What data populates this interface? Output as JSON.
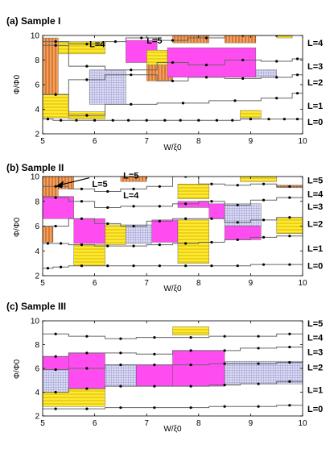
{
  "chart_data": [
    {
      "type": "step-band",
      "title": "(a) Sample I",
      "xlabel": "W/ξ0",
      "ylabel": "Φ/Φ0",
      "xlim": [
        5,
        10
      ],
      "ylim": [
        2,
        10
      ],
      "xticks": [
        "5",
        "6",
        "7",
        "8",
        "9",
        "10"
      ],
      "yticks": [
        "2",
        "4",
        "6",
        "8",
        "10"
      ],
      "level_labels": [
        {
          "text": "L=4",
          "y": 9.4
        },
        {
          "text": "L=3",
          "y": 7.5
        },
        {
          "text": "L=2",
          "y": 6.2
        },
        {
          "text": "L=1",
          "y": 4.3
        },
        {
          "text": "L=0",
          "y": 3.0
        }
      ],
      "inner_labels": [
        {
          "text": "L=4",
          "x": 5.9,
          "y": 9.3
        },
        {
          "text": "L=5",
          "x": 7.0,
          "y": 9.6
        }
      ],
      "lines": [
        {
          "x": [
            5,
            5.2,
            5.5,
            5.8,
            6.2,
            6.5,
            6.8,
            7.2,
            7.5,
            7.8,
            8.2,
            8.5,
            8.8,
            9.2,
            9.5,
            9.8,
            10
          ],
          "y": [
            3.2,
            3.1,
            3.1,
            3.1,
            3.1,
            3.1,
            3.1,
            3.1,
            3.1,
            3.1,
            3.1,
            3.1,
            3.2,
            3.2,
            3.2,
            3.2,
            3.2
          ]
        },
        {
          "x": [
            5,
            5.5,
            6.2,
            7.2,
            8.2,
            9.2,
            9.8,
            10
          ],
          "y": [
            5.2,
            3.5,
            4.4,
            4.5,
            4.7,
            4.9,
            5.3,
            5.3
          ]
        },
        {
          "x": [
            5,
            5.5,
            6.2,
            7.2,
            7.8,
            8.5,
            9.2,
            9.8,
            10
          ],
          "y": [
            5.2,
            6.4,
            6.8,
            6.3,
            6.6,
            6.5,
            6.6,
            6.8,
            6.8
          ]
        },
        {
          "x": [
            5,
            5.5,
            6.2,
            7.2,
            7.8,
            8.5,
            9.2,
            9.8,
            10
          ],
          "y": [
            9.2,
            7.5,
            7.2,
            7.8,
            7.6,
            8.0,
            7.9,
            8.1,
            8.1
          ]
        },
        {
          "x": [
            5,
            5.5,
            6.2,
            6.6,
            7.2,
            7.8,
            8.5,
            9.2,
            9.8
          ],
          "y": [
            9.5,
            9.3,
            9.5,
            9.8,
            9.6,
            9.8,
            10.0,
            10.0,
            10.0
          ]
        }
      ],
      "bands": [
        {
          "fill": "orange",
          "x0": 5.0,
          "x1": 5.3,
          "y0": 5.2,
          "y1": 9.8
        },
        {
          "fill": "yellow",
          "x0": 5.0,
          "x1": 5.5,
          "y0": 3.3,
          "y1": 5.2
        },
        {
          "fill": "yellow",
          "x0": 5.5,
          "x1": 6.2,
          "y0": 3.2,
          "y1": 3.8
        },
        {
          "fill": "yellow",
          "x0": 5.3,
          "x1": 6.2,
          "y0": 8.5,
          "y1": 9.5
        },
        {
          "fill": "blue",
          "x0": 5.9,
          "x1": 6.6,
          "y0": 4.4,
          "y1": 7.2
        },
        {
          "fill": "magenta",
          "x0": 6.6,
          "x1": 7.2,
          "y0": 7.8,
          "y1": 9.6
        },
        {
          "fill": "orange",
          "x0": 7.0,
          "x1": 7.5,
          "y0": 6.3,
          "y1": 8.6
        },
        {
          "fill": "yellow",
          "x0": 7.0,
          "x1": 7.4,
          "y0": 7.6,
          "y1": 8.8
        },
        {
          "fill": "magenta",
          "x0": 7.4,
          "x1": 9.1,
          "y0": 6.6,
          "y1": 9.0
        },
        {
          "fill": "orange",
          "x0": 7.5,
          "x1": 8.2,
          "y0": 9.4,
          "y1": 10.0
        },
        {
          "fill": "orange",
          "x0": 8.5,
          "x1": 9.1,
          "y0": 9.4,
          "y1": 10.0
        },
        {
          "fill": "blue",
          "x0": 9.1,
          "x1": 9.5,
          "y0": 6.6,
          "y1": 7.2
        },
        {
          "fill": "yellow",
          "x0": 8.8,
          "x1": 9.2,
          "y0": 3.3,
          "y1": 3.9
        },
        {
          "fill": "yellow",
          "x0": 9.5,
          "x1": 9.8,
          "y0": 9.8,
          "y1": 10.0
        }
      ]
    },
    {
      "type": "step-band",
      "title": "(b) Sample II",
      "xlabel": "W/ξ0",
      "ylabel": "Φ/Φ0",
      "xlim": [
        5,
        10
      ],
      "ylim": [
        2,
        10
      ],
      "xticks": [
        "5",
        "6",
        "7",
        "8",
        "9",
        "10"
      ],
      "yticks": [
        "2",
        "4",
        "6",
        "8",
        "10"
      ],
      "level_labels": [
        {
          "text": "L=5",
          "y": 9.7
        },
        {
          "text": "L=4",
          "y": 8.6
        },
        {
          "text": "L=3",
          "y": 7.6
        },
        {
          "text": "L=2",
          "y": 6.2
        },
        {
          "text": "L=1",
          "y": 4.2
        },
        {
          "text": "L=0",
          "y": 2.8
        }
      ],
      "inner_labels": [
        {
          "text": "L=5",
          "x": 5.95,
          "y": 9.4
        },
        {
          "text": "L=5",
          "x": 6.55,
          "y": 10.1
        },
        {
          "text": "L=4",
          "x": 6.55,
          "y": 8.5
        }
      ],
      "lines": [
        {
          "x": [
            5,
            5.2,
            5.5,
            6.0,
            6.5,
            7.0,
            7.5,
            8.0,
            8.5,
            9.0,
            9.5,
            10
          ],
          "y": [
            2.6,
            2.7,
            2.8,
            2.8,
            2.8,
            2.8,
            2.8,
            2.8,
            2.8,
            2.9,
            2.9,
            3.0
          ]
        },
        {
          "x": [
            5,
            5.2,
            5.5,
            6.0,
            6.5,
            7.0,
            7.5,
            8.0,
            8.5,
            9.0,
            9.5,
            10
          ],
          "y": [
            4.6,
            4.6,
            4.5,
            4.4,
            4.4,
            4.5,
            4.6,
            4.7,
            4.9,
            5.1,
            5.2,
            5.4
          ]
        },
        {
          "x": [
            5,
            5.5,
            6.0,
            6.5,
            7.0,
            7.5,
            8.0,
            8.5,
            9.0,
            9.5,
            10
          ],
          "y": [
            6.0,
            6.6,
            6.2,
            6.0,
            6.4,
            6.6,
            6.6,
            6.3,
            6.5,
            6.7,
            7.0
          ]
        },
        {
          "x": [
            5,
            5.5,
            6.0,
            6.5,
            7.0,
            7.5,
            8.0,
            8.5,
            9.0,
            9.5,
            10
          ],
          "y": [
            8.3,
            8.0,
            7.5,
            7.6,
            7.6,
            7.8,
            8.0,
            7.7,
            8.1,
            8.3,
            8.4
          ]
        },
        {
          "x": [
            5,
            5.5,
            6.0,
            6.5,
            7.0,
            7.5,
            8.0,
            8.5,
            9.0,
            9.5,
            10
          ],
          "y": [
            9.2,
            9.0,
            8.8,
            9.0,
            9.2,
            10.0,
            9.4,
            9.3,
            9.4,
            9.2,
            8.9
          ]
        }
      ],
      "bands": [
        {
          "fill": "orange",
          "x0": 5.0,
          "x1": 5.3,
          "y0": 8.4,
          "y1": 10.0
        },
        {
          "fill": "orange",
          "x0": 5.3,
          "x1": 5.6,
          "y0": 9.0,
          "y1": 10.0
        },
        {
          "fill": "orange",
          "x0": 5.0,
          "x1": 5.2,
          "y0": 4.7,
          "y1": 6.0
        },
        {
          "fill": "magenta",
          "x0": 5.0,
          "x1": 5.6,
          "y0": 6.6,
          "y1": 8.4
        },
        {
          "fill": "magenta",
          "x0": 5.6,
          "x1": 6.2,
          "y0": 4.6,
          "y1": 6.6
        },
        {
          "fill": "yellow",
          "x0": 5.6,
          "x1": 6.2,
          "y0": 2.8,
          "y1": 4.5
        },
        {
          "fill": "yellow",
          "x0": 6.2,
          "x1": 6.6,
          "y0": 4.5,
          "y1": 6.1
        },
        {
          "fill": "blue",
          "x0": 6.6,
          "x1": 7.1,
          "y0": 4.6,
          "y1": 6.1
        },
        {
          "fill": "magenta",
          "x0": 7.1,
          "x1": 7.6,
          "y0": 4.7,
          "y1": 6.5
        },
        {
          "fill": "orange",
          "x0": 6.5,
          "x1": 7.0,
          "y0": 9.6,
          "y1": 10.0
        },
        {
          "fill": "yellow",
          "x0": 7.6,
          "x1": 8.2,
          "y0": 8.2,
          "y1": 9.4
        },
        {
          "fill": "yellow",
          "x0": 7.6,
          "x1": 8.2,
          "y0": 3.0,
          "y1": 6.5
        },
        {
          "fill": "magenta",
          "x0": 7.6,
          "x1": 8.2,
          "y0": 7.5,
          "y1": 8.0
        },
        {
          "fill": "magenta",
          "x0": 8.2,
          "x1": 8.5,
          "y0": 6.6,
          "y1": 7.8
        },
        {
          "fill": "blue",
          "x0": 8.5,
          "x1": 9.2,
          "y0": 6.0,
          "y1": 7.8
        },
        {
          "fill": "magenta",
          "x0": 8.5,
          "x1": 9.2,
          "y0": 4.9,
          "y1": 6.0
        },
        {
          "fill": "yellow",
          "x0": 8.8,
          "x1": 9.5,
          "y0": 9.6,
          "y1": 10.0
        },
        {
          "fill": "orange",
          "x0": 9.5,
          "x1": 10.0,
          "y0": 9.1,
          "y1": 9.3
        },
        {
          "fill": "yellow",
          "x0": 9.5,
          "x1": 10.0,
          "y0": 5.4,
          "y1": 6.7
        }
      ]
    },
    {
      "type": "step-band",
      "title": "(c) Sample III",
      "xlabel": "W/ξ0",
      "ylabel": "Φ/Φ0",
      "xlim": [
        5,
        10
      ],
      "ylim": [
        2,
        10
      ],
      "xticks": [
        "5",
        "6",
        "7",
        "8",
        "9",
        "10"
      ],
      "yticks": [
        "2",
        "4",
        "6",
        "8",
        "10"
      ],
      "level_labels": [
        {
          "text": "L=5",
          "y": 9.8
        },
        {
          "text": "L=4",
          "y": 8.6
        },
        {
          "text": "L=3",
          "y": 7.4
        },
        {
          "text": "L=2",
          "y": 6.1
        },
        {
          "text": "L=1",
          "y": 4.2
        },
        {
          "text": "L=0",
          "y": 2.6
        }
      ],
      "inner_labels": [],
      "lines": [
        {
          "x": [
            5,
            5.5,
            6.2,
            6.8,
            7.5,
            8.2,
            8.8,
            9.5,
            10
          ],
          "y": [
            2.6,
            2.6,
            2.7,
            2.7,
            2.7,
            2.8,
            2.8,
            2.9,
            2.9
          ]
        },
        {
          "x": [
            5,
            5.5,
            6.2,
            6.8,
            7.5,
            8.2,
            8.8,
            9.5,
            10
          ],
          "y": [
            4.0,
            4.3,
            4.5,
            4.5,
            4.5,
            4.6,
            4.7,
            4.9,
            5.0
          ]
        },
        {
          "x": [
            5,
            5.5,
            6.2,
            6.8,
            7.5,
            8.2,
            8.8,
            9.5,
            10
          ],
          "y": [
            5.9,
            6.0,
            6.3,
            6.3,
            6.3,
            6.4,
            6.4,
            6.5,
            6.6
          ]
        },
        {
          "x": [
            5,
            5.5,
            6.2,
            6.8,
            7.5,
            8.2,
            8.8,
            9.5,
            10
          ],
          "y": [
            7.0,
            7.3,
            7.3,
            7.2,
            7.5,
            7.5,
            7.7,
            7.8,
            8.0
          ]
        },
        {
          "x": [
            5,
            5.5,
            6.2,
            6.8,
            7.5,
            8.2,
            8.8,
            9.5,
            10
          ],
          "y": [
            8.9,
            8.7,
            8.5,
            8.6,
            8.6,
            8.7,
            8.7,
            8.9,
            8.9
          ]
        }
      ],
      "bands": [
        {
          "fill": "yellow",
          "x0": 5.0,
          "x1": 6.2,
          "y0": 2.8,
          "y1": 4.3
        },
        {
          "fill": "blue",
          "x0": 5.0,
          "x1": 5.5,
          "y0": 4.0,
          "y1": 5.9
        },
        {
          "fill": "magenta",
          "x0": 5.0,
          "x1": 5.5,
          "y0": 5.9,
          "y1": 7.0
        },
        {
          "fill": "magenta",
          "x0": 5.5,
          "x1": 6.2,
          "y0": 4.3,
          "y1": 7.3
        },
        {
          "fill": "blue",
          "x0": 6.2,
          "x1": 6.8,
          "y0": 4.5,
          "y1": 6.3
        },
        {
          "fill": "magenta",
          "x0": 6.8,
          "x1": 7.5,
          "y0": 4.5,
          "y1": 6.3
        },
        {
          "fill": "magenta",
          "x0": 7.5,
          "x1": 8.5,
          "y0": 4.5,
          "y1": 7.5
        },
        {
          "fill": "blue",
          "x0": 8.5,
          "x1": 10.0,
          "y0": 4.7,
          "y1": 6.6
        },
        {
          "fill": "yellow",
          "x0": 7.5,
          "x1": 8.2,
          "y0": 8.8,
          "y1": 9.5
        }
      ]
    }
  ]
}
